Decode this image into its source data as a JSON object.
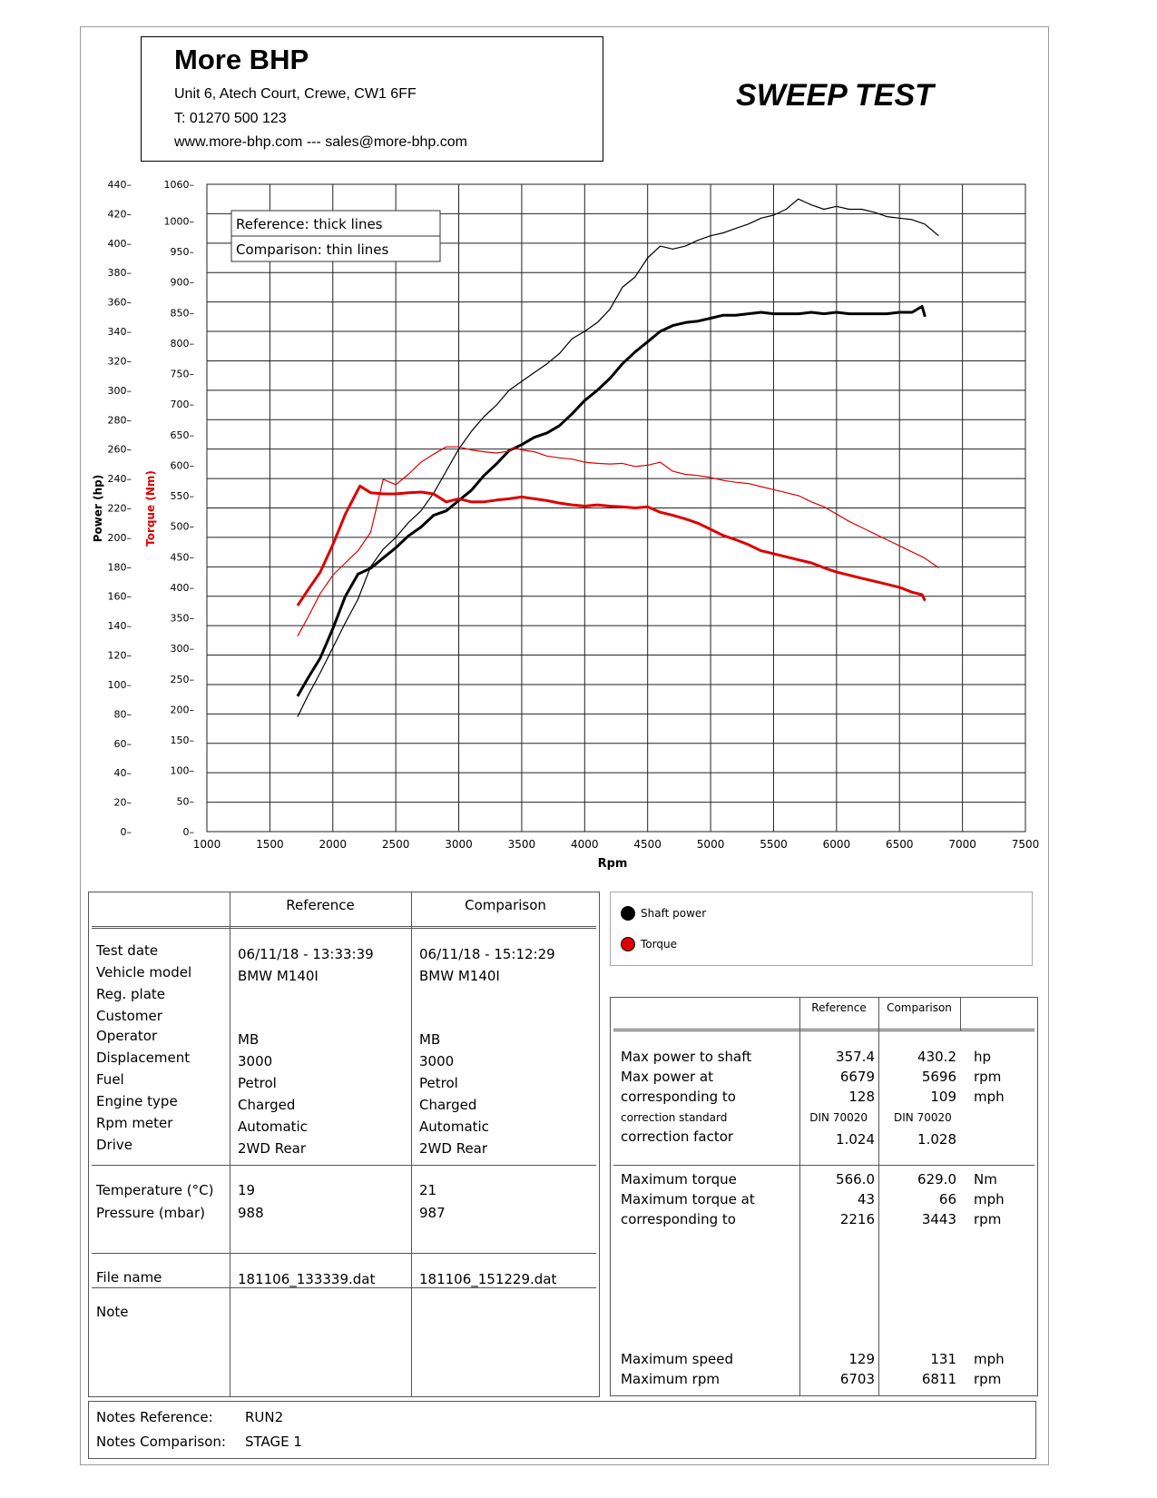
{
  "header": {
    "company": "More BHP",
    "address": "Unit 6, Atech Court, Crewe, CW1 6FF",
    "phone": "T: 01270 500 123",
    "web": "www.more-bhp.com --- sales@more-bhp.com",
    "title": "SWEEP TEST"
  },
  "chart_data": {
    "type": "line",
    "xlabel": "Rpm",
    "ylabel_power": "Power (hp)",
    "ylabel_torque": "Torque (Nm)",
    "xlim": [
      1000,
      7500
    ],
    "power_ylim": [
      0,
      440
    ],
    "torque_ylim": [
      0,
      1060
    ],
    "x_ticks": [
      "1000",
      "1500",
      "2000",
      "2500",
      "3000",
      "3500",
      "4000",
      "4500",
      "5000",
      "5500",
      "6000",
      "6500",
      "7000",
      "7500"
    ],
    "power_ticks": [
      "0",
      "20",
      "40",
      "60",
      "80",
      "100",
      "120",
      "140",
      "160",
      "180",
      "200",
      "220",
      "240",
      "260",
      "280",
      "300",
      "320",
      "340",
      "360",
      "380",
      "400",
      "420",
      "440"
    ],
    "torque_ticks": [
      "0",
      "50",
      "100",
      "150",
      "200",
      "250",
      "300",
      "350",
      "400",
      "450",
      "500",
      "550",
      "600",
      "650",
      "700",
      "750",
      "800",
      "850",
      "900",
      "950",
      "1000",
      "1060"
    ],
    "legend_box": [
      "Reference: thick lines",
      "Comparison: thin lines"
    ],
    "grid": true,
    "colors": {
      "power": "#000000",
      "torque": "#dd0000"
    },
    "series": [
      {
        "kind": "power",
        "style": "reference",
        "points": [
          [
            1720,
            92
          ],
          [
            1800,
            104
          ],
          [
            1900,
            118
          ],
          [
            2000,
            138
          ],
          [
            2100,
            160
          ],
          [
            2200,
            175
          ],
          [
            2300,
            179
          ],
          [
            2400,
            186
          ],
          [
            2500,
            193
          ],
          [
            2600,
            201
          ],
          [
            2700,
            207
          ],
          [
            2800,
            215
          ],
          [
            2900,
            218
          ],
          [
            3000,
            225
          ],
          [
            3100,
            232
          ],
          [
            3200,
            242
          ],
          [
            3300,
            250
          ],
          [
            3400,
            259
          ],
          [
            3500,
            263
          ],
          [
            3600,
            268
          ],
          [
            3700,
            271
          ],
          [
            3800,
            276
          ],
          [
            3900,
            284
          ],
          [
            4000,
            293
          ],
          [
            4100,
            300
          ],
          [
            4200,
            308
          ],
          [
            4300,
            318
          ],
          [
            4400,
            326
          ],
          [
            4500,
            333
          ],
          [
            4600,
            340
          ],
          [
            4700,
            344
          ],
          [
            4800,
            346
          ],
          [
            4900,
            347
          ],
          [
            5000,
            349
          ],
          [
            5100,
            351
          ],
          [
            5200,
            351
          ],
          [
            5300,
            352
          ],
          [
            5400,
            353
          ],
          [
            5500,
            352
          ],
          [
            5600,
            352
          ],
          [
            5700,
            352
          ],
          [
            5800,
            353
          ],
          [
            5900,
            352
          ],
          [
            6000,
            353
          ],
          [
            6100,
            352
          ],
          [
            6200,
            352
          ],
          [
            6300,
            352
          ],
          [
            6400,
            352
          ],
          [
            6500,
            353
          ],
          [
            6600,
            353
          ],
          [
            6679,
            357
          ],
          [
            6703,
            350
          ]
        ]
      },
      {
        "kind": "power",
        "style": "comparison",
        "points": [
          [
            1720,
            78
          ],
          [
            1800,
            92
          ],
          [
            1900,
            108
          ],
          [
            2000,
            125
          ],
          [
            2100,
            142
          ],
          [
            2200,
            158
          ],
          [
            2300,
            180
          ],
          [
            2400,
            192
          ],
          [
            2500,
            200
          ],
          [
            2600,
            210
          ],
          [
            2700,
            218
          ],
          [
            2800,
            230
          ],
          [
            2900,
            245
          ],
          [
            3000,
            260
          ],
          [
            3100,
            272
          ],
          [
            3200,
            282
          ],
          [
            3300,
            290
          ],
          [
            3400,
            300
          ],
          [
            3500,
            306
          ],
          [
            3600,
            312
          ],
          [
            3700,
            318
          ],
          [
            3800,
            325
          ],
          [
            3900,
            335
          ],
          [
            4000,
            340
          ],
          [
            4100,
            346
          ],
          [
            4200,
            355
          ],
          [
            4300,
            370
          ],
          [
            4400,
            377
          ],
          [
            4500,
            390
          ],
          [
            4600,
            398
          ],
          [
            4700,
            396
          ],
          [
            4800,
            398
          ],
          [
            4900,
            402
          ],
          [
            5000,
            405
          ],
          [
            5100,
            407
          ],
          [
            5200,
            410
          ],
          [
            5300,
            413
          ],
          [
            5400,
            417
          ],
          [
            5500,
            419
          ],
          [
            5600,
            423
          ],
          [
            5696,
            430
          ],
          [
            5800,
            426
          ],
          [
            5900,
            423
          ],
          [
            6000,
            425
          ],
          [
            6100,
            423
          ],
          [
            6200,
            423
          ],
          [
            6300,
            421
          ],
          [
            6400,
            418
          ],
          [
            6500,
            417
          ],
          [
            6600,
            416
          ],
          [
            6700,
            413
          ],
          [
            6811,
            405
          ]
        ]
      },
      {
        "kind": "torque",
        "style": "reference",
        "points": [
          [
            1720,
            370
          ],
          [
            1800,
            395
          ],
          [
            1900,
            425
          ],
          [
            2000,
            470
          ],
          [
            2100,
            520
          ],
          [
            2200,
            560
          ],
          [
            2216,
            566
          ],
          [
            2300,
            555
          ],
          [
            2400,
            553
          ],
          [
            2500,
            553
          ],
          [
            2600,
            555
          ],
          [
            2700,
            556
          ],
          [
            2800,
            553
          ],
          [
            2900,
            540
          ],
          [
            3000,
            545
          ],
          [
            3100,
            540
          ],
          [
            3200,
            540
          ],
          [
            3300,
            543
          ],
          [
            3400,
            545
          ],
          [
            3500,
            548
          ],
          [
            3600,
            545
          ],
          [
            3700,
            542
          ],
          [
            3800,
            538
          ],
          [
            3900,
            535
          ],
          [
            4000,
            533
          ],
          [
            4100,
            535
          ],
          [
            4200,
            533
          ],
          [
            4300,
            532
          ],
          [
            4400,
            530
          ],
          [
            4500,
            532
          ],
          [
            4600,
            523
          ],
          [
            4700,
            518
          ],
          [
            4800,
            512
          ],
          [
            4900,
            505
          ],
          [
            5000,
            495
          ],
          [
            5100,
            485
          ],
          [
            5200,
            478
          ],
          [
            5300,
            470
          ],
          [
            5400,
            460
          ],
          [
            5500,
            455
          ],
          [
            5600,
            450
          ],
          [
            5700,
            445
          ],
          [
            5800,
            440
          ],
          [
            5900,
            432
          ],
          [
            6000,
            425
          ],
          [
            6100,
            420
          ],
          [
            6200,
            415
          ],
          [
            6300,
            410
          ],
          [
            6400,
            405
          ],
          [
            6500,
            400
          ],
          [
            6600,
            392
          ],
          [
            6679,
            388
          ],
          [
            6703,
            378
          ]
        ]
      },
      {
        "kind": "torque",
        "style": "comparison",
        "points": [
          [
            1720,
            320
          ],
          [
            1800,
            350
          ],
          [
            1900,
            390
          ],
          [
            2000,
            420
          ],
          [
            2100,
            440
          ],
          [
            2200,
            460
          ],
          [
            2300,
            490
          ],
          [
            2400,
            577
          ],
          [
            2500,
            568
          ],
          [
            2600,
            585
          ],
          [
            2700,
            605
          ],
          [
            2800,
            618
          ],
          [
            2900,
            630
          ],
          [
            3000,
            630
          ],
          [
            3100,
            625
          ],
          [
            3200,
            622
          ],
          [
            3300,
            620
          ],
          [
            3400,
            623
          ],
          [
            3443,
            629
          ],
          [
            3500,
            625
          ],
          [
            3600,
            622
          ],
          [
            3700,
            615
          ],
          [
            3800,
            612
          ],
          [
            3900,
            610
          ],
          [
            4000,
            605
          ],
          [
            4100,
            603
          ],
          [
            4200,
            602
          ],
          [
            4300,
            603
          ],
          [
            4400,
            598
          ],
          [
            4500,
            600
          ],
          [
            4600,
            605
          ],
          [
            4700,
            590
          ],
          [
            4800,
            585
          ],
          [
            4900,
            583
          ],
          [
            5000,
            580
          ],
          [
            5100,
            575
          ],
          [
            5200,
            572
          ],
          [
            5300,
            570
          ],
          [
            5400,
            565
          ],
          [
            5500,
            560
          ],
          [
            5600,
            555
          ],
          [
            5700,
            550
          ],
          [
            5800,
            540
          ],
          [
            5900,
            532
          ],
          [
            6000,
            520
          ],
          [
            6100,
            508
          ],
          [
            6200,
            498
          ],
          [
            6300,
            488
          ],
          [
            6400,
            478
          ],
          [
            6500,
            468
          ],
          [
            6600,
            458
          ],
          [
            6700,
            448
          ],
          [
            6811,
            432
          ]
        ]
      }
    ]
  },
  "details": {
    "col_reference": "Reference",
    "col_comparison": "Comparison",
    "rows_group1": [
      {
        "label": "Test date",
        "ref": "06/11/18 - 13:33:39",
        "cmp": "06/11/18 - 15:12:29"
      },
      {
        "label": "Vehicle model",
        "ref": "BMW M140I",
        "cmp": "BMW M140I"
      },
      {
        "label": "Reg. plate",
        "ref": "",
        "cmp": ""
      },
      {
        "label": "Customer",
        "ref": "",
        "cmp": ""
      },
      {
        "label": "Operator",
        "ref": "MB",
        "cmp": "MB"
      },
      {
        "label": "Displacement",
        "ref": "3000",
        "cmp": "3000"
      },
      {
        "label": "Fuel",
        "ref": "Petrol",
        "cmp": "Petrol"
      },
      {
        "label": "Engine type",
        "ref": "Charged",
        "cmp": "Charged"
      },
      {
        "label": "Rpm meter",
        "ref": "Automatic",
        "cmp": "Automatic"
      },
      {
        "label": "Drive",
        "ref": "2WD Rear",
        "cmp": "2WD Rear"
      }
    ],
    "rows_group2": [
      {
        "label": "Temperature (°C)",
        "ref": "19",
        "cmp": "21"
      },
      {
        "label": "Pressure (mbar)",
        "ref": "988",
        "cmp": "987"
      }
    ],
    "file": {
      "label": "File name",
      "ref": "181106_133339.dat",
      "cmp": "181106_151229.dat"
    },
    "note_label": "Note"
  },
  "legend": {
    "power": "Shaft power",
    "torque": "Torque"
  },
  "results": {
    "col_reference": "Reference",
    "col_comparison": "Comparison",
    "power_rows": [
      {
        "label": "Max power to shaft",
        "ref": "357.4",
        "cmp": "430.2",
        "unit": "hp"
      },
      {
        "label": "Max power at",
        "ref": "6679",
        "cmp": "5696",
        "unit": "rpm"
      },
      {
        "label": "corresponding to",
        "ref": "128",
        "cmp": "109",
        "unit": "mph"
      }
    ],
    "standard": {
      "label": "correction standard",
      "ref": "DIN 70020",
      "cmp": "DIN 70020"
    },
    "factor": {
      "label": "correction factor",
      "ref": "1.024",
      "cmp": "1.028"
    },
    "torque_rows": [
      {
        "label": "Maximum torque",
        "ref": "566.0",
        "cmp": "629.0",
        "unit": "Nm"
      },
      {
        "label": "Maximum torque at",
        "ref": "43",
        "cmp": "66",
        "unit": "mph"
      },
      {
        "label": "corresponding to",
        "ref": "2216",
        "cmp": "3443",
        "unit": "rpm"
      }
    ],
    "speed_rows": [
      {
        "label": "Maximum speed",
        "ref": "129",
        "cmp": "131",
        "unit": "mph"
      },
      {
        "label": "Maximum rpm",
        "ref": "6703",
        "cmp": "6811",
        "unit": "rpm"
      }
    ]
  },
  "notes": {
    "ref_label": "Notes Reference:",
    "ref_value": "RUN2",
    "cmp_label": "Notes Comparison:",
    "cmp_value": "STAGE 1"
  }
}
